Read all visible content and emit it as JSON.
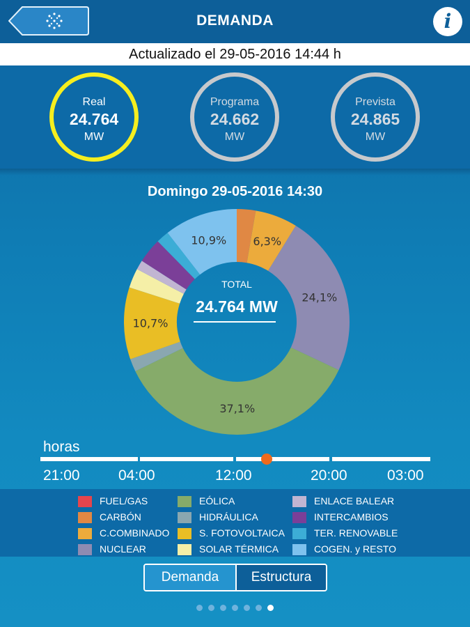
{
  "header": {
    "title": "DEMANDA",
    "info_label": "i"
  },
  "updated": "Actualizado el 29-05-2016 14:44 h",
  "metrics": [
    {
      "label": "Real",
      "value": "24.764",
      "unit": "MW"
    },
    {
      "label": "Programa",
      "value": "24.662",
      "unit": "MW"
    },
    {
      "label": "Prevista",
      "value": "24.865",
      "unit": "MW"
    }
  ],
  "chart_title": "Domingo 29-05-2016 14:30",
  "chart_data": {
    "type": "pie",
    "title": "Domingo 29-05-2016 14:30",
    "center_label": "TOTAL",
    "center_value": "24.764 MW",
    "slices": [
      {
        "name": "CARBÓN",
        "value": 2.8,
        "color": "#e08844",
        "label": ""
      },
      {
        "name": "C.COMBINADO",
        "value": 6.3,
        "color": "#ecab3c",
        "label": "6,3%"
      },
      {
        "name": "NUCLEAR",
        "value": 24.1,
        "color": "#8e8bb2",
        "label": "24,1%"
      },
      {
        "name": "EÓLICA",
        "value": 37.1,
        "color": "#86ab6a",
        "label": "37,1%"
      },
      {
        "name": "HIDRÁULICA",
        "value": 1.9,
        "color": "#8aa7b0",
        "label": ""
      },
      {
        "name": "S. FOTOVOLTAICA",
        "value": 10.7,
        "color": "#e9be25",
        "label": "10,7%"
      },
      {
        "name": "SOLAR TÉRMICA",
        "value": 2.9,
        "color": "#f5efa7",
        "label": ""
      },
      {
        "name": "ENLACE BALEAR",
        "value": 1.4,
        "color": "#c1b5d2",
        "label": ""
      },
      {
        "name": "INTERCAMBIOS",
        "value": 3.7,
        "color": "#7b3f98",
        "label": ""
      },
      {
        "name": "TER. RENOVABLE",
        "value": 1.9,
        "color": "#3cadd6",
        "label": ""
      },
      {
        "name": "COGEN. y RESTO",
        "value": 10.9,
        "color": "#7ec2ee",
        "label": "10,9%"
      }
    ]
  },
  "timeline": {
    "label": "horas",
    "ticks": [
      "21:00",
      "04:00",
      "12:00",
      "20:00",
      "03:00"
    ],
    "position": 0.584,
    "slider_color": "#ee6a1c"
  },
  "legend": [
    {
      "label": "FUEL/GAS",
      "color": "#e5454d"
    },
    {
      "label": "CARBÓN",
      "color": "#e08844"
    },
    {
      "label": "C.COMBINADO",
      "color": "#ecab3c"
    },
    {
      "label": "NUCLEAR",
      "color": "#8e8bb2"
    },
    {
      "label": "EÓLICA",
      "color": "#86ab6a"
    },
    {
      "label": "HIDRÁULICA",
      "color": "#8aa7b0"
    },
    {
      "label": "S. FOTOVOLTAICA",
      "color": "#e9be25"
    },
    {
      "label": "SOLAR TÉRMICA",
      "color": "#f5efa7"
    },
    {
      "label": "ENLACE BALEAR",
      "color": "#c1b5d2"
    },
    {
      "label": "INTERCAMBIOS",
      "color": "#7b3f98"
    },
    {
      "label": "TER. RENOVABLE",
      "color": "#3cadd6"
    },
    {
      "label": "COGEN. y RESTO",
      "color": "#7ec2ee"
    }
  ],
  "segmented": {
    "active": "Demanda",
    "inactive": "Estructura"
  },
  "pager": {
    "count": 7,
    "active_index": 6
  }
}
